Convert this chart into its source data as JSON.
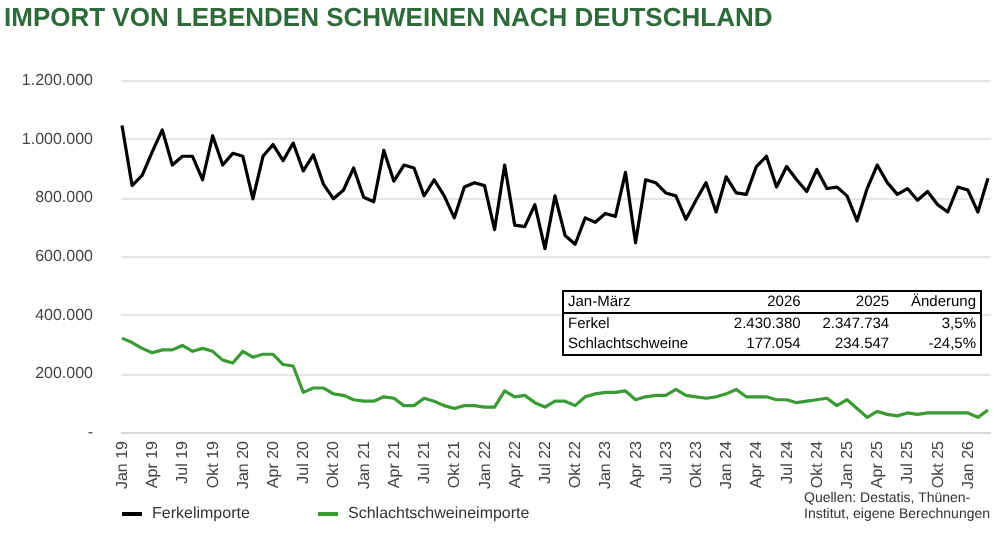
{
  "chart_data": {
    "type": "line",
    "title": "IMPORT VON LEBENDEN SCHWEINEN NACH DEUTSCHLAND",
    "categories": [
      "Jan 19",
      null,
      null,
      "Apr 19",
      null,
      null,
      "Jul 19",
      null,
      null,
      "Okt 19",
      null,
      null,
      "Jan 20",
      null,
      null,
      "Apr 20",
      null,
      null,
      "Jul 20",
      null,
      null,
      "Okt 20",
      null,
      null,
      "Jan 21",
      null,
      null,
      "Apr 21",
      null,
      null,
      "Jul 21",
      null,
      null,
      "Okt 21",
      null,
      null,
      "Jan 22",
      null,
      null,
      "Apr 22",
      null,
      null,
      "Jul 22",
      null,
      null,
      "Okt 22",
      null,
      null,
      "Jan 23",
      null,
      null,
      "Apr 23",
      null,
      null,
      "Jul 23",
      null,
      null,
      "Okt 23",
      null,
      null,
      "Jan 24",
      null,
      null,
      "Apr 24",
      null,
      null,
      "Jul 24",
      null,
      null,
      "Okt 24",
      null,
      null,
      "Jan 25",
      null,
      null,
      "Apr 25",
      null,
      null,
      "Jul 25",
      null,
      null,
      "Okt 25",
      null,
      null,
      "Jan 26",
      null,
      null
    ],
    "series": [
      {
        "name": "Ferkelimporte",
        "color": "#000000",
        "values": [
          1045000,
          840000,
          875000,
          955000,
          1030000,
          910000,
          940000,
          940000,
          860000,
          1010000,
          910000,
          950000,
          940000,
          795000,
          940000,
          980000,
          925000,
          985000,
          890000,
          945000,
          845000,
          795000,
          825000,
          900000,
          800000,
          785000,
          960000,
          855000,
          910000,
          900000,
          805000,
          860000,
          805000,
          730000,
          835000,
          850000,
          840000,
          690000,
          910000,
          705000,
          700000,
          775000,
          625000,
          805000,
          670000,
          640000,
          730000,
          715000,
          745000,
          735000,
          885000,
          645000,
          860000,
          850000,
          815000,
          805000,
          725000,
          790000,
          850000,
          750000,
          870000,
          815000,
          810000,
          905000,
          940000,
          835000,
          905000,
          860000,
          820000,
          895000,
          830000,
          835000,
          805000,
          720000,
          830000,
          910000,
          850000,
          810000,
          830000,
          790000,
          820000,
          775000,
          750000,
          835000,
          825000,
          750000,
          865000
        ]
      },
      {
        "name": "Schlachtschweineimporte",
        "color": "#3a9a34",
        "values": [
          320000,
          305000,
          285000,
          270000,
          280000,
          280000,
          295000,
          275000,
          285000,
          275000,
          245000,
          235000,
          275000,
          255000,
          265000,
          265000,
          230000,
          225000,
          135000,
          150000,
          150000,
          130000,
          125000,
          110000,
          105000,
          105000,
          120000,
          115000,
          90000,
          90000,
          115000,
          105000,
          90000,
          80000,
          90000,
          90000,
          85000,
          85000,
          140000,
          120000,
          125000,
          100000,
          85000,
          105000,
          105000,
          90000,
          120000,
          130000,
          135000,
          135000,
          140000,
          110000,
          120000,
          125000,
          125000,
          145000,
          125000,
          120000,
          115000,
          120000,
          130000,
          145000,
          120000,
          120000,
          120000,
          110000,
          110000,
          100000,
          105000,
          110000,
          115000,
          90000,
          110000,
          80000,
          50000,
          70000,
          60000,
          55000,
          65000,
          60000,
          65000,
          65000,
          65000,
          65000,
          65000,
          50000,
          75000
        ]
      }
    ],
    "ylim": [
      0,
      1200000
    ],
    "yticks": [
      {
        "value": 0,
        "label": "-"
      },
      {
        "value": 200000,
        "label": "200.000"
      },
      {
        "value": 400000,
        "label": "400.000"
      },
      {
        "value": 600000,
        "label": "600.000"
      },
      {
        "value": 800000,
        "label": "800.000"
      },
      {
        "value": 1000000,
        "label": "1.000.000"
      },
      {
        "value": 1200000,
        "label": "1.200.000"
      }
    ],
    "grid": "y",
    "legend": "bottom",
    "annotations": [
      "Quellen: Destatis, Thünen-Institut, eigene Berechnungen",
      "Jan-März",
      "2026",
      "2025",
      "Änderung",
      "Ferkel",
      "2.430.380",
      "2.347.734",
      "3,5%",
      "Schlachtschweine",
      "177.054",
      "234.547",
      "-24,5%"
    ]
  }
}
